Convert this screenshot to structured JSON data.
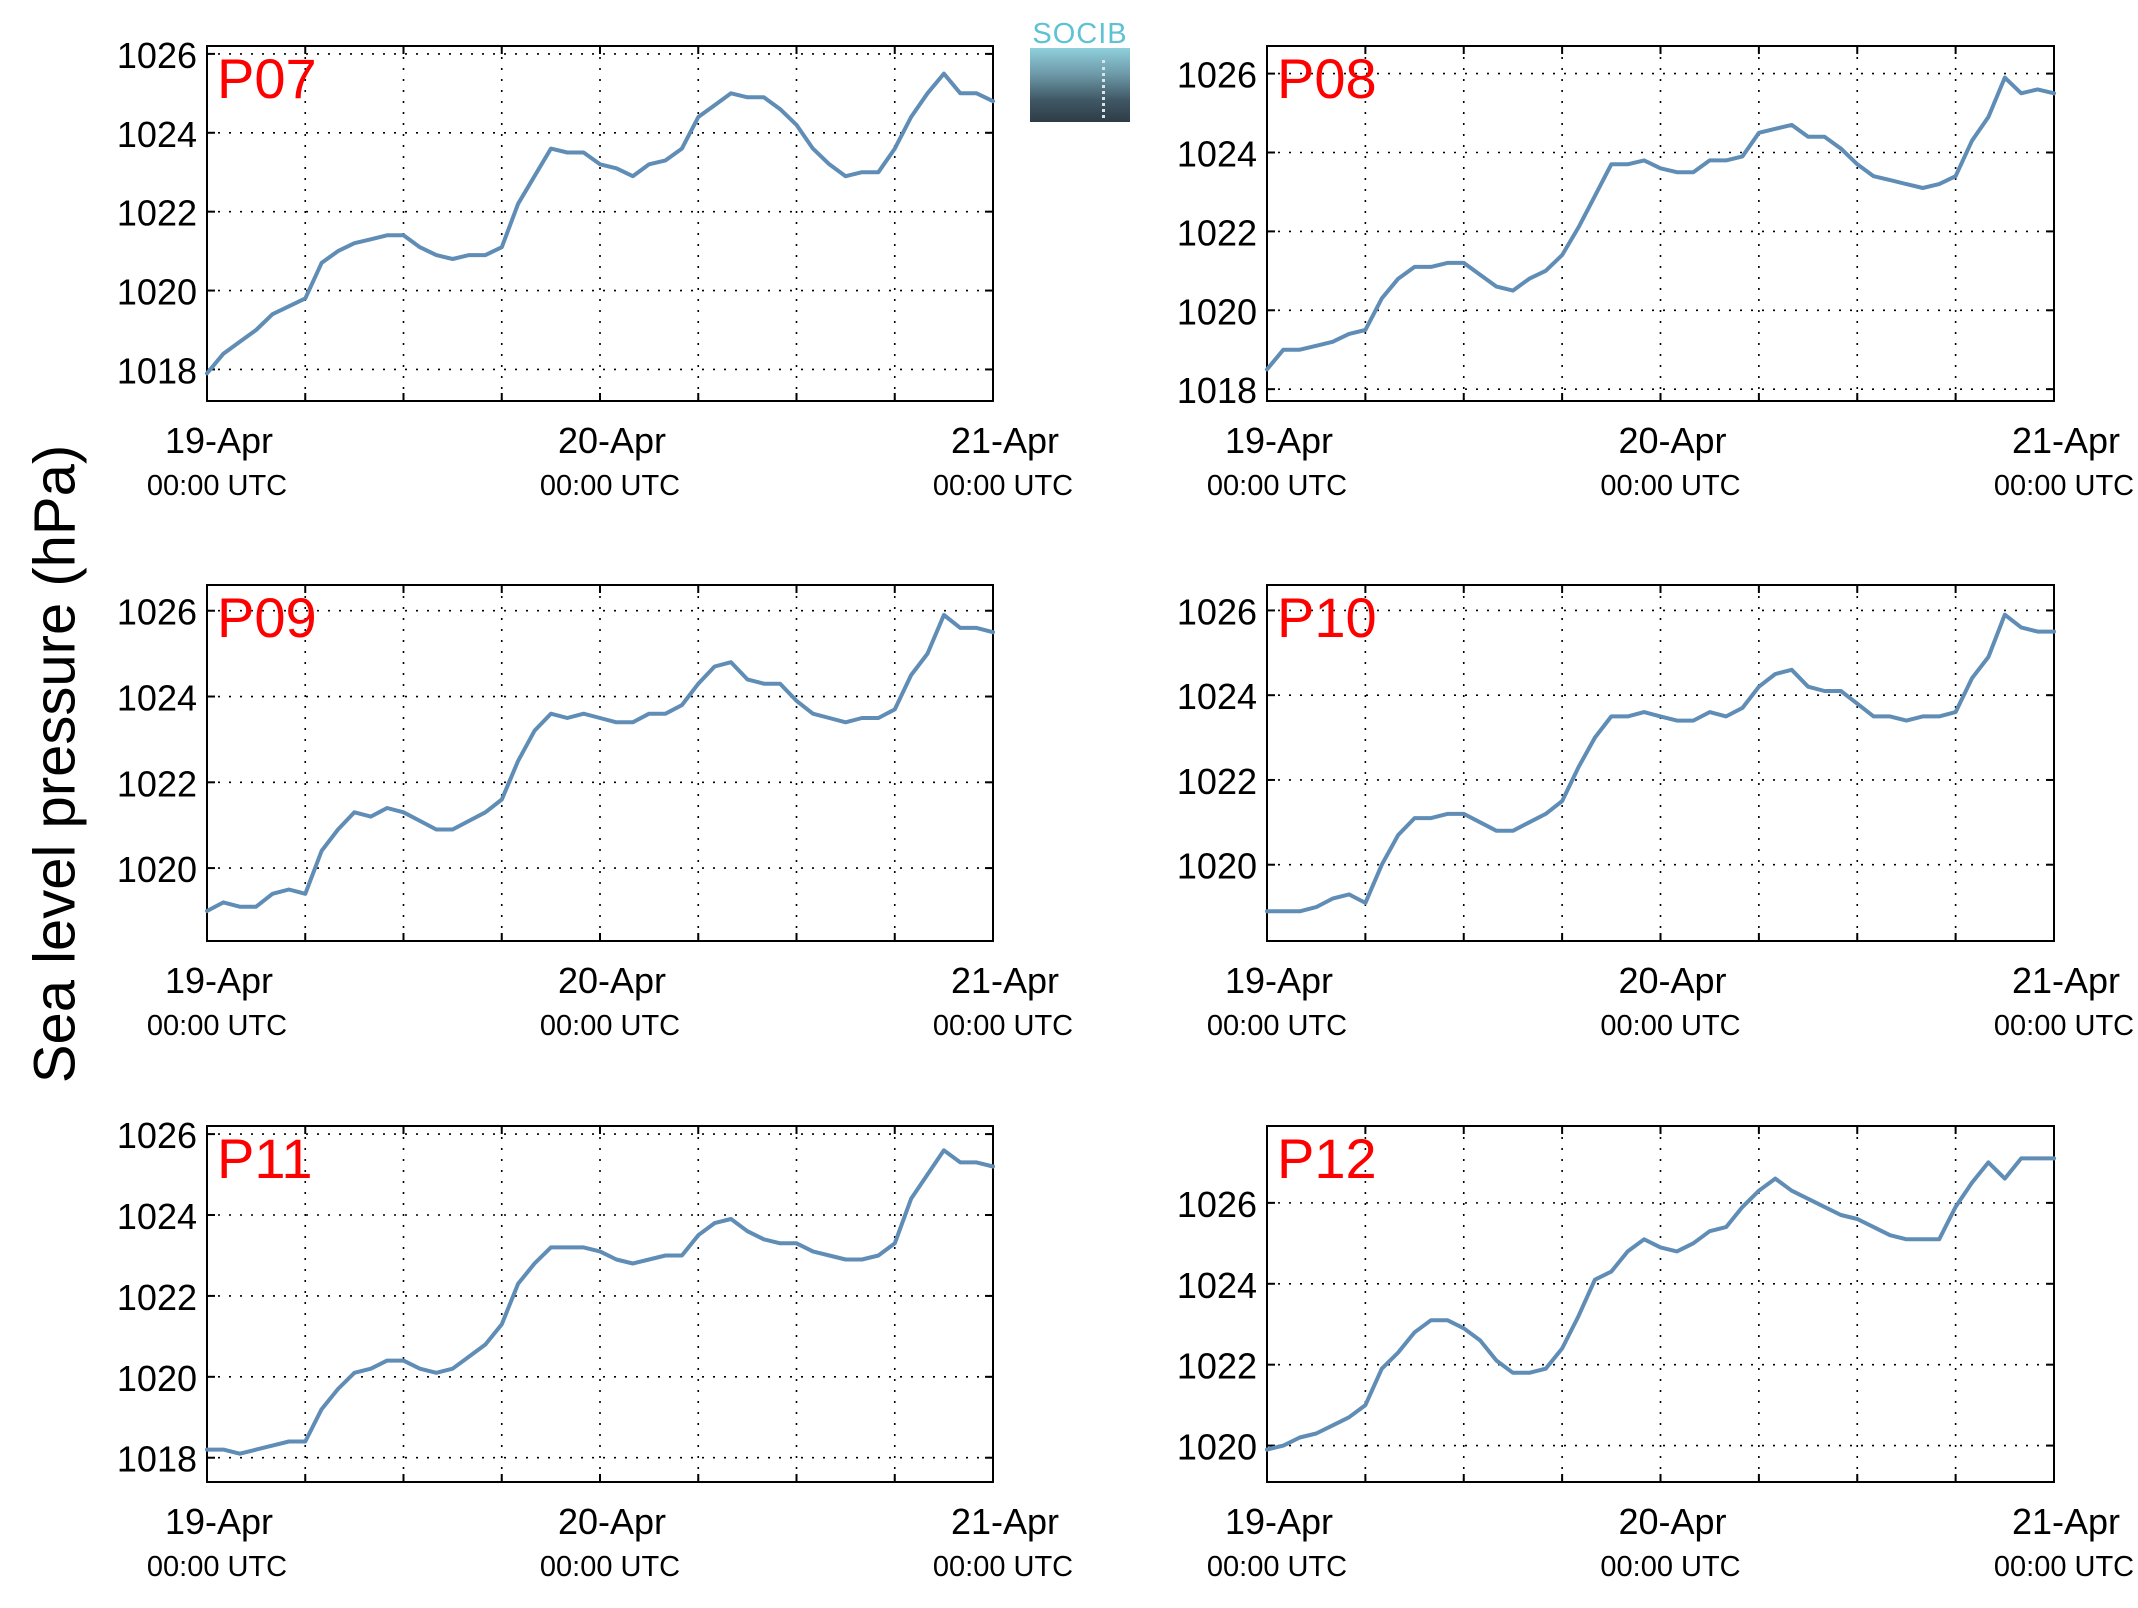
{
  "figure": {
    "ylabel": "Sea level pressure (hPa)",
    "logo_text": "SOCIB"
  },
  "chart_data": [
    {
      "type": "line",
      "label": "P07",
      "x_ticks": [
        "19-Apr\n00:00 UTC",
        "20-Apr\n00:00 UTC",
        "21-Apr\n00:00 UTC"
      ],
      "xlim": [
        0,
        48
      ],
      "ylim": [
        1017.2,
        1026.2
      ],
      "yticks": [
        1018,
        1020,
        1022,
        1024,
        1026
      ],
      "grid": true,
      "x": [
        0,
        1,
        2,
        3,
        4,
        5,
        6,
        7,
        8,
        9,
        10,
        11,
        12,
        13,
        14,
        15,
        16,
        17,
        18,
        19,
        20,
        21,
        22,
        23,
        24,
        25,
        26,
        27,
        28,
        29,
        30,
        31,
        32,
        33,
        34,
        35,
        36,
        37,
        38,
        39,
        40,
        41,
        42,
        43,
        44,
        45,
        46,
        47,
        48
      ],
      "values": [
        1017.9,
        1018.4,
        1018.7,
        1019.0,
        1019.4,
        1019.6,
        1019.8,
        1020.7,
        1021.0,
        1021.2,
        1021.3,
        1021.4,
        1021.4,
        1021.1,
        1020.9,
        1020.8,
        1020.9,
        1020.9,
        1021.1,
        1022.2,
        1022.9,
        1023.6,
        1023.5,
        1023.5,
        1023.2,
        1023.1,
        1022.9,
        1023.2,
        1023.3,
        1023.6,
        1024.4,
        1024.7,
        1025.0,
        1024.9,
        1024.9,
        1024.6,
        1024.2,
        1023.6,
        1023.2,
        1022.9,
        1023.0,
        1023.0,
        1023.6,
        1024.4,
        1025.0,
        1025.5,
        1025.0,
        1025.0,
        1024.8
      ]
    },
    {
      "type": "line",
      "label": "P08",
      "x_ticks": [
        "19-Apr\n00:00 UTC",
        "20-Apr\n00:00 UTC",
        "21-Apr\n00:00 UTC"
      ],
      "xlim": [
        0,
        48
      ],
      "ylim": [
        1017.7,
        1026.7
      ],
      "yticks": [
        1018,
        1020,
        1022,
        1024,
        1026
      ],
      "grid": true,
      "x": [
        0,
        1,
        2,
        3,
        4,
        5,
        6,
        7,
        8,
        9,
        10,
        11,
        12,
        13,
        14,
        15,
        16,
        17,
        18,
        19,
        20,
        21,
        22,
        23,
        24,
        25,
        26,
        27,
        28,
        29,
        30,
        31,
        32,
        33,
        34,
        35,
        36,
        37,
        38,
        39,
        40,
        41,
        42,
        43,
        44,
        45,
        46,
        47,
        48
      ],
      "values": [
        1018.5,
        1019.0,
        1019.0,
        1019.1,
        1019.2,
        1019.4,
        1019.5,
        1020.3,
        1020.8,
        1021.1,
        1021.1,
        1021.2,
        1021.2,
        1020.9,
        1020.6,
        1020.5,
        1020.8,
        1021.0,
        1021.4,
        1022.1,
        1022.9,
        1023.7,
        1023.7,
        1023.8,
        1023.6,
        1023.5,
        1023.5,
        1023.8,
        1023.8,
        1023.9,
        1024.5,
        1024.6,
        1024.7,
        1024.4,
        1024.4,
        1024.1,
        1023.7,
        1023.4,
        1023.3,
        1023.2,
        1023.1,
        1023.2,
        1023.4,
        1024.3,
        1024.9,
        1025.9,
        1025.5,
        1025.6,
        1025.5
      ]
    },
    {
      "type": "line",
      "label": "P09",
      "x_ticks": [
        "19-Apr\n00:00 UTC",
        "20-Apr\n00:00 UTC",
        "21-Apr\n00:00 UTC"
      ],
      "xlim": [
        0,
        48
      ],
      "ylim": [
        1018.3,
        1026.6
      ],
      "yticks": [
        1020,
        1022,
        1024,
        1026
      ],
      "grid": true,
      "x": [
        0,
        1,
        2,
        3,
        4,
        5,
        6,
        7,
        8,
        9,
        10,
        11,
        12,
        13,
        14,
        15,
        16,
        17,
        18,
        19,
        20,
        21,
        22,
        23,
        24,
        25,
        26,
        27,
        28,
        29,
        30,
        31,
        32,
        33,
        34,
        35,
        36,
        37,
        38,
        39,
        40,
        41,
        42,
        43,
        44,
        45,
        46,
        47,
        48
      ],
      "values": [
        1019.0,
        1019.2,
        1019.1,
        1019.1,
        1019.4,
        1019.5,
        1019.4,
        1020.4,
        1020.9,
        1021.3,
        1021.2,
        1021.4,
        1021.3,
        1021.1,
        1020.9,
        1020.9,
        1021.1,
        1021.3,
        1021.6,
        1022.5,
        1023.2,
        1023.6,
        1023.5,
        1023.6,
        1023.5,
        1023.4,
        1023.4,
        1023.6,
        1023.6,
        1023.8,
        1024.3,
        1024.7,
        1024.8,
        1024.4,
        1024.3,
        1024.3,
        1023.9,
        1023.6,
        1023.5,
        1023.4,
        1023.5,
        1023.5,
        1023.7,
        1024.5,
        1025.0,
        1025.9,
        1025.6,
        1025.6,
        1025.5
      ]
    },
    {
      "type": "line",
      "label": "P10",
      "x_ticks": [
        "19-Apr\n00:00 UTC",
        "20-Apr\n00:00 UTC",
        "21-Apr\n00:00 UTC"
      ],
      "xlim": [
        0,
        48
      ],
      "ylim": [
        1018.2,
        1026.6
      ],
      "yticks": [
        1020,
        1022,
        1024,
        1026
      ],
      "grid": true,
      "x": [
        0,
        1,
        2,
        3,
        4,
        5,
        6,
        7,
        8,
        9,
        10,
        11,
        12,
        13,
        14,
        15,
        16,
        17,
        18,
        19,
        20,
        21,
        22,
        23,
        24,
        25,
        26,
        27,
        28,
        29,
        30,
        31,
        32,
        33,
        34,
        35,
        36,
        37,
        38,
        39,
        40,
        41,
        42,
        43,
        44,
        45,
        46,
        47,
        48
      ],
      "values": [
        1018.9,
        1018.9,
        1018.9,
        1019.0,
        1019.2,
        1019.3,
        1019.1,
        1020.0,
        1020.7,
        1021.1,
        1021.1,
        1021.2,
        1021.2,
        1021.0,
        1020.8,
        1020.8,
        1021.0,
        1021.2,
        1021.5,
        1022.3,
        1023.0,
        1023.5,
        1023.5,
        1023.6,
        1023.5,
        1023.4,
        1023.4,
        1023.6,
        1023.5,
        1023.7,
        1024.2,
        1024.5,
        1024.6,
        1024.2,
        1024.1,
        1024.1,
        1023.8,
        1023.5,
        1023.5,
        1023.4,
        1023.5,
        1023.5,
        1023.6,
        1024.4,
        1024.9,
        1025.9,
        1025.6,
        1025.5,
        1025.5
      ]
    },
    {
      "type": "line",
      "label": "P11",
      "x_ticks": [
        "19-Apr\n00:00 UTC",
        "20-Apr\n00:00 UTC",
        "21-Apr\n00:00 UTC"
      ],
      "xlim": [
        0,
        48
      ],
      "ylim": [
        1017.4,
        1026.2
      ],
      "yticks": [
        1018,
        1020,
        1022,
        1024,
        1026
      ],
      "grid": true,
      "x": [
        0,
        1,
        2,
        3,
        4,
        5,
        6,
        7,
        8,
        9,
        10,
        11,
        12,
        13,
        14,
        15,
        16,
        17,
        18,
        19,
        20,
        21,
        22,
        23,
        24,
        25,
        26,
        27,
        28,
        29,
        30,
        31,
        32,
        33,
        34,
        35,
        36,
        37,
        38,
        39,
        40,
        41,
        42,
        43,
        44,
        45,
        46,
        47,
        48
      ],
      "values": [
        1018.2,
        1018.2,
        1018.1,
        1018.2,
        1018.3,
        1018.4,
        1018.4,
        1019.2,
        1019.7,
        1020.1,
        1020.2,
        1020.4,
        1020.4,
        1020.2,
        1020.1,
        1020.2,
        1020.5,
        1020.8,
        1021.3,
        1022.3,
        1022.8,
        1023.2,
        1023.2,
        1023.2,
        1023.1,
        1022.9,
        1022.8,
        1022.9,
        1023.0,
        1023.0,
        1023.5,
        1023.8,
        1023.9,
        1023.6,
        1023.4,
        1023.3,
        1023.3,
        1023.1,
        1023.0,
        1022.9,
        1022.9,
        1023.0,
        1023.3,
        1024.4,
        1025.0,
        1025.6,
        1025.3,
        1025.3,
        1025.2
      ]
    },
    {
      "type": "line",
      "label": "P12",
      "x_ticks": [
        "19-Apr\n00:00 UTC",
        "20-Apr\n00:00 UTC",
        "21-Apr\n00:00 UTC"
      ],
      "xlim": [
        0,
        48
      ],
      "ylim": [
        1019.1,
        1027.9
      ],
      "yticks": [
        1020,
        1022,
        1024,
        1026
      ],
      "grid": true,
      "x": [
        0,
        1,
        2,
        3,
        4,
        5,
        6,
        7,
        8,
        9,
        10,
        11,
        12,
        13,
        14,
        15,
        16,
        17,
        18,
        19,
        20,
        21,
        22,
        23,
        24,
        25,
        26,
        27,
        28,
        29,
        30,
        31,
        32,
        33,
        34,
        35,
        36,
        37,
        38,
        39,
        40,
        41,
        42,
        43,
        44,
        45,
        46,
        47,
        48
      ],
      "values": [
        1019.9,
        1020.0,
        1020.2,
        1020.3,
        1020.5,
        1020.7,
        1021.0,
        1021.9,
        1022.3,
        1022.8,
        1023.1,
        1023.1,
        1022.9,
        1022.6,
        1022.1,
        1021.8,
        1021.8,
        1021.9,
        1022.4,
        1023.2,
        1024.1,
        1024.3,
        1024.8,
        1025.1,
        1024.9,
        1024.8,
        1025.0,
        1025.3,
        1025.4,
        1025.9,
        1026.3,
        1026.6,
        1026.3,
        1026.1,
        1025.9,
        1025.7,
        1025.6,
        1025.4,
        1025.2,
        1025.1,
        1025.1,
        1025.1,
        1025.9,
        1026.5,
        1027.0,
        1026.6,
        1027.1,
        1027.1,
        1027.1
      ]
    }
  ]
}
